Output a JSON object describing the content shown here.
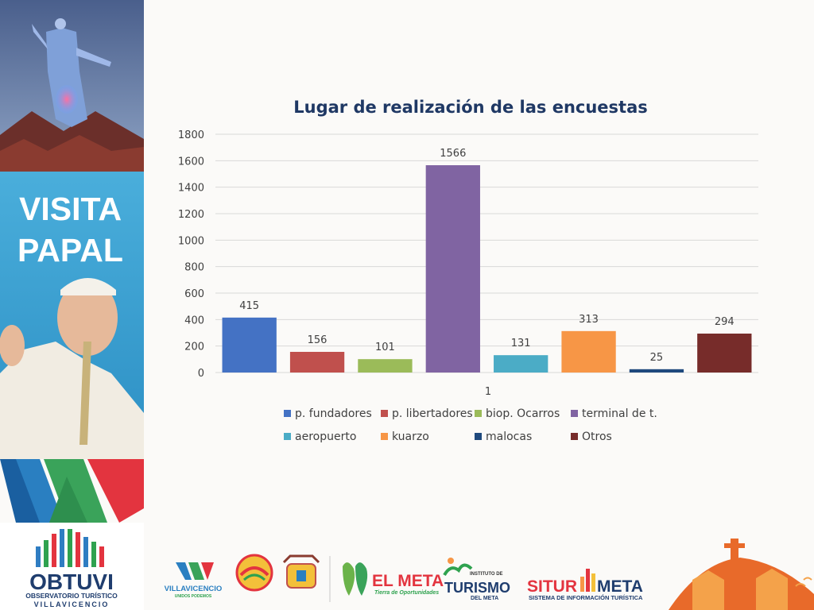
{
  "sidebar": {
    "title_line1": "VISITA",
    "title_line2": "PAPAL",
    "org_name": "OBTUVI",
    "org_subtitle1": "OBSERVATORIO TURÍSTICO",
    "org_subtitle2": "VILLAVICENCIO"
  },
  "footer_logos": {
    "villavicencio": "VILLAVICENCIO",
    "villavicencio_tag": "UNIDOS PODEMOS",
    "el_meta": "EL META",
    "el_meta_tag": "Tierra de Oportunidades",
    "turismo_top": "INSTITUTO DE",
    "turismo": "TURISMO",
    "turismo_bottom": "DEL META",
    "situr": "SITUR",
    "situr_meta": "META",
    "situr_tag": "SISTEMA DE INFORMACIÓN TURÍSTICA"
  },
  "chart_data": {
    "type": "bar",
    "title": "Lugar de realización de las encuestas",
    "categories": [
      "1"
    ],
    "ylim": [
      0,
      1800
    ],
    "yticks": [
      "0",
      "200",
      "400",
      "600",
      "800",
      "1000",
      "1200",
      "1400",
      "1600",
      "1800"
    ],
    "grid": true,
    "legend_position": "bottom",
    "series": [
      {
        "name": "p. fundadores",
        "values": [
          415
        ],
        "color": "#4472c4"
      },
      {
        "name": "p. libertadores",
        "values": [
          156
        ],
        "color": "#c0504d"
      },
      {
        "name": "biop. Ocarros",
        "values": [
          101
        ],
        "color": "#9bbb59"
      },
      {
        "name": "terminal de t.",
        "values": [
          1566
        ],
        "color": "#8064a2"
      },
      {
        "name": "aeropuerto",
        "values": [
          131
        ],
        "color": "#4bacc6"
      },
      {
        "name": "kuarzo",
        "values": [
          313
        ],
        "color": "#f79646"
      },
      {
        "name": "malocas",
        "values": [
          25
        ],
        "color": "#1f497d"
      },
      {
        "name": "Otros",
        "values": [
          294
        ],
        "color": "#772c2a"
      }
    ]
  }
}
